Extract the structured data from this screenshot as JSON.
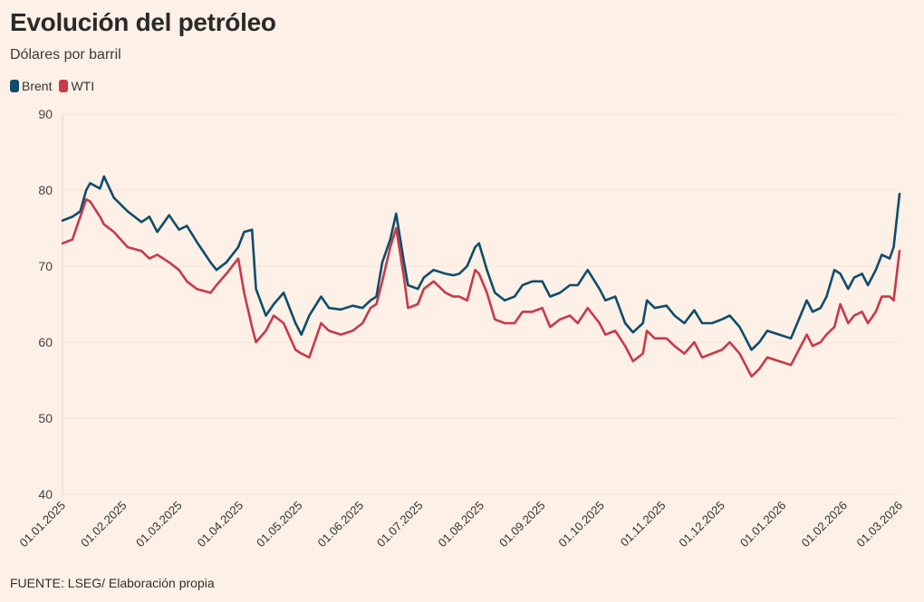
{
  "chart_data": {
    "type": "line",
    "title": "Evolución del petróleo",
    "subtitle": "Dólares por barril",
    "ylabel": "",
    "xlabel": "",
    "ylim": [
      40,
      90
    ],
    "xlim": [
      "01.01.2025",
      "01.03.2026"
    ],
    "y_ticks": [
      "90",
      "80",
      "70",
      "60",
      "50",
      "40"
    ],
    "x_ticks": [
      "01.01.2025",
      "01.02.2025",
      "01.03.2025",
      "01.04.2025",
      "01.05.2025",
      "01.06.2025",
      "01.07.2025",
      "01.08.2025",
      "01.09.2025",
      "01.10.2025",
      "01.11.2025",
      "01.12.2025",
      "01.01.2026",
      "01.02.2026",
      "01.03.2026"
    ],
    "legend_position": "top-left",
    "grid": true,
    "source": "FUENTE: LSEG/ Elaboración propia",
    "series": [
      {
        "name": "Brent",
        "color": "#0f4c6b",
        "points": [
          [
            "2025-01-01",
            76.0
          ],
          [
            "2025-01-06",
            76.5
          ],
          [
            "2025-01-10",
            77.2
          ],
          [
            "2025-01-13",
            80.0
          ],
          [
            "2025-01-15",
            80.9
          ],
          [
            "2025-01-20",
            80.2
          ],
          [
            "2025-01-22",
            81.8
          ],
          [
            "2025-01-27",
            79.0
          ],
          [
            "2025-02-03",
            77.2
          ],
          [
            "2025-02-10",
            75.8
          ],
          [
            "2025-02-14",
            76.5
          ],
          [
            "2025-02-18",
            74.5
          ],
          [
            "2025-02-24",
            76.7
          ],
          [
            "2025-03-01",
            74.8
          ],
          [
            "2025-03-05",
            75.3
          ],
          [
            "2025-03-10",
            73.2
          ],
          [
            "2025-03-17",
            70.5
          ],
          [
            "2025-03-20",
            69.5
          ],
          [
            "2025-03-25",
            70.5
          ],
          [
            "2025-03-31",
            72.5
          ],
          [
            "2025-04-03",
            74.5
          ],
          [
            "2025-04-07",
            74.8
          ],
          [
            "2025-04-09",
            67.0
          ],
          [
            "2025-04-14",
            63.5
          ],
          [
            "2025-04-18",
            65.0
          ],
          [
            "2025-04-23",
            66.5
          ],
          [
            "2025-04-29",
            62.5
          ],
          [
            "2025-05-02",
            61.0
          ],
          [
            "2025-05-06",
            63.5
          ],
          [
            "2025-05-12",
            66.0
          ],
          [
            "2025-05-16",
            64.5
          ],
          [
            "2025-05-22",
            64.3
          ],
          [
            "2025-05-28",
            64.8
          ],
          [
            "2025-06-02",
            64.5
          ],
          [
            "2025-06-06",
            65.5
          ],
          [
            "2025-06-09",
            66.0
          ],
          [
            "2025-06-12",
            70.5
          ],
          [
            "2025-06-16",
            73.5
          ],
          [
            "2025-06-19",
            76.9
          ],
          [
            "2025-06-23",
            70.5
          ],
          [
            "2025-06-25",
            67.5
          ],
          [
            "2025-06-30",
            67.0
          ],
          [
            "2025-07-03",
            68.5
          ],
          [
            "2025-07-08",
            69.5
          ],
          [
            "2025-07-14",
            69.0
          ],
          [
            "2025-07-18",
            68.8
          ],
          [
            "2025-07-21",
            69.0
          ],
          [
            "2025-07-25",
            70.0
          ],
          [
            "2025-07-29",
            72.5
          ],
          [
            "2025-07-31",
            73.0
          ],
          [
            "2025-08-04",
            69.5
          ],
          [
            "2025-08-08",
            66.5
          ],
          [
            "2025-08-13",
            65.5
          ],
          [
            "2025-08-18",
            66.0
          ],
          [
            "2025-08-22",
            67.5
          ],
          [
            "2025-08-27",
            68.0
          ],
          [
            "2025-09-01",
            68.0
          ],
          [
            "2025-09-05",
            66.0
          ],
          [
            "2025-09-10",
            66.5
          ],
          [
            "2025-09-15",
            67.5
          ],
          [
            "2025-09-19",
            67.5
          ],
          [
            "2025-09-24",
            69.5
          ],
          [
            "2025-09-30",
            67.0
          ],
          [
            "2025-10-03",
            65.5
          ],
          [
            "2025-10-08",
            66.0
          ],
          [
            "2025-10-13",
            62.5
          ],
          [
            "2025-10-17",
            61.3
          ],
          [
            "2025-10-22",
            62.5
          ],
          [
            "2025-10-24",
            65.5
          ],
          [
            "2025-10-28",
            64.5
          ],
          [
            "2025-11-03",
            64.8
          ],
          [
            "2025-11-07",
            63.5
          ],
          [
            "2025-11-12",
            62.5
          ],
          [
            "2025-11-17",
            64.2
          ],
          [
            "2025-11-21",
            62.5
          ],
          [
            "2025-11-26",
            62.5
          ],
          [
            "2025-12-01",
            63.0
          ],
          [
            "2025-12-05",
            63.5
          ],
          [
            "2025-12-10",
            62.0
          ],
          [
            "2025-12-16",
            59.0
          ],
          [
            "2025-12-20",
            60.0
          ],
          [
            "2025-12-24",
            61.5
          ],
          [
            "2025-12-30",
            61.0
          ],
          [
            "2026-01-05",
            60.5
          ],
          [
            "2026-01-09",
            63.0
          ],
          [
            "2026-01-13",
            65.5
          ],
          [
            "2026-01-16",
            64.0
          ],
          [
            "2026-01-20",
            64.5
          ],
          [
            "2026-01-23",
            66.0
          ],
          [
            "2026-01-27",
            69.5
          ],
          [
            "2026-01-30",
            69.0
          ],
          [
            "2026-02-03",
            67.0
          ],
          [
            "2026-02-06",
            68.5
          ],
          [
            "2026-02-10",
            69.0
          ],
          [
            "2026-02-13",
            67.5
          ],
          [
            "2026-02-17",
            69.5
          ],
          [
            "2026-02-20",
            71.5
          ],
          [
            "2026-02-24",
            71.0
          ],
          [
            "2026-02-26",
            72.5
          ],
          [
            "2026-03-01",
            79.5
          ]
        ]
      },
      {
        "name": "WTI",
        "color": "#c8394a",
        "points": [
          [
            "2025-01-01",
            73.0
          ],
          [
            "2025-01-06",
            73.5
          ],
          [
            "2025-01-10",
            76.5
          ],
          [
            "2025-01-13",
            78.8
          ],
          [
            "2025-01-15",
            78.5
          ],
          [
            "2025-01-20",
            76.5
          ],
          [
            "2025-01-22",
            75.5
          ],
          [
            "2025-01-27",
            74.5
          ],
          [
            "2025-02-03",
            72.5
          ],
          [
            "2025-02-10",
            72.0
          ],
          [
            "2025-02-14",
            71.0
          ],
          [
            "2025-02-18",
            71.5
          ],
          [
            "2025-02-24",
            70.5
          ],
          [
            "2025-03-01",
            69.5
          ],
          [
            "2025-03-05",
            68.0
          ],
          [
            "2025-03-10",
            67.0
          ],
          [
            "2025-03-17",
            66.5
          ],
          [
            "2025-03-20",
            67.5
          ],
          [
            "2025-03-25",
            69.0
          ],
          [
            "2025-03-31",
            71.0
          ],
          [
            "2025-04-03",
            66.5
          ],
          [
            "2025-04-07",
            62.0
          ],
          [
            "2025-04-09",
            60.0
          ],
          [
            "2025-04-14",
            61.5
          ],
          [
            "2025-04-18",
            63.5
          ],
          [
            "2025-04-23",
            62.5
          ],
          [
            "2025-04-29",
            59.0
          ],
          [
            "2025-05-02",
            58.5
          ],
          [
            "2025-05-06",
            58.0
          ],
          [
            "2025-05-12",
            62.5
          ],
          [
            "2025-05-16",
            61.5
          ],
          [
            "2025-05-22",
            61.0
          ],
          [
            "2025-05-28",
            61.5
          ],
          [
            "2025-06-02",
            62.5
          ],
          [
            "2025-06-06",
            64.5
          ],
          [
            "2025-06-09",
            65.0
          ],
          [
            "2025-06-12",
            68.0
          ],
          [
            "2025-06-16",
            72.5
          ],
          [
            "2025-06-19",
            75.0
          ],
          [
            "2025-06-23",
            68.5
          ],
          [
            "2025-06-25",
            64.5
          ],
          [
            "2025-06-30",
            65.0
          ],
          [
            "2025-07-03",
            67.0
          ],
          [
            "2025-07-08",
            68.0
          ],
          [
            "2025-07-14",
            66.5
          ],
          [
            "2025-07-18",
            66.0
          ],
          [
            "2025-07-21",
            66.0
          ],
          [
            "2025-07-25",
            65.5
          ],
          [
            "2025-07-29",
            69.5
          ],
          [
            "2025-07-31",
            69.0
          ],
          [
            "2025-08-04",
            66.5
          ],
          [
            "2025-08-08",
            63.0
          ],
          [
            "2025-08-13",
            62.5
          ],
          [
            "2025-08-18",
            62.5
          ],
          [
            "2025-08-22",
            64.0
          ],
          [
            "2025-08-27",
            64.0
          ],
          [
            "2025-09-01",
            64.5
          ],
          [
            "2025-09-05",
            62.0
          ],
          [
            "2025-09-10",
            63.0
          ],
          [
            "2025-09-15",
            63.5
          ],
          [
            "2025-09-19",
            62.5
          ],
          [
            "2025-09-24",
            64.5
          ],
          [
            "2025-09-30",
            62.5
          ],
          [
            "2025-10-03",
            61.0
          ],
          [
            "2025-10-08",
            61.5
          ],
          [
            "2025-10-13",
            59.5
          ],
          [
            "2025-10-17",
            57.5
          ],
          [
            "2025-10-22",
            58.5
          ],
          [
            "2025-10-24",
            61.5
          ],
          [
            "2025-10-28",
            60.5
          ],
          [
            "2025-11-03",
            60.5
          ],
          [
            "2025-11-07",
            59.5
          ],
          [
            "2025-11-12",
            58.5
          ],
          [
            "2025-11-17",
            60.0
          ],
          [
            "2025-11-21",
            58.0
          ],
          [
            "2025-11-26",
            58.5
          ],
          [
            "2025-12-01",
            59.0
          ],
          [
            "2025-12-05",
            60.0
          ],
          [
            "2025-12-10",
            58.5
          ],
          [
            "2025-12-16",
            55.5
          ],
          [
            "2025-12-20",
            56.5
          ],
          [
            "2025-12-24",
            58.0
          ],
          [
            "2025-12-30",
            57.5
          ],
          [
            "2026-01-05",
            57.0
          ],
          [
            "2026-01-09",
            59.0
          ],
          [
            "2026-01-13",
            61.0
          ],
          [
            "2026-01-16",
            59.5
          ],
          [
            "2026-01-20",
            60.0
          ],
          [
            "2026-01-23",
            61.0
          ],
          [
            "2026-01-27",
            62.0
          ],
          [
            "2026-01-30",
            65.0
          ],
          [
            "2026-02-03",
            62.5
          ],
          [
            "2026-02-06",
            63.5
          ],
          [
            "2026-02-10",
            64.0
          ],
          [
            "2026-02-13",
            62.5
          ],
          [
            "2026-02-17",
            64.0
          ],
          [
            "2026-02-20",
            66.0
          ],
          [
            "2026-02-24",
            66.0
          ],
          [
            "2026-02-26",
            65.5
          ],
          [
            "2026-03-01",
            72.0
          ]
        ]
      }
    ]
  }
}
